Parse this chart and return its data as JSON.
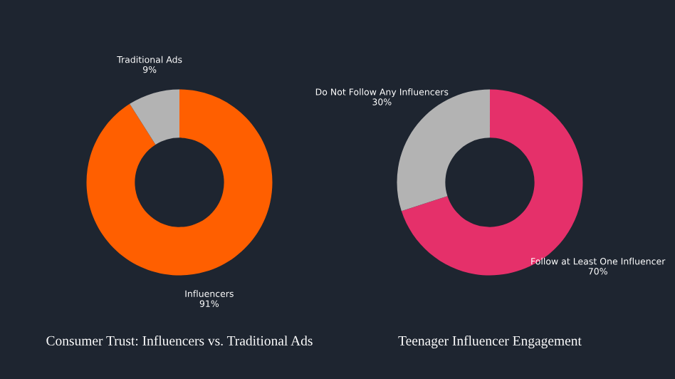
{
  "chart_data": [
    {
      "type": "donut",
      "title": "Consumer Trust: Influencers vs. Traditional Ads",
      "categories": [
        "Influencers",
        "Traditional Ads"
      ],
      "values": [
        91,
        9
      ],
      "colors": [
        "#ff5f00",
        "#b3b3b3"
      ],
      "value_labels": [
        "91%",
        "9%"
      ]
    },
    {
      "type": "donut",
      "title": "Teenager Influencer Engagement",
      "categories": [
        "Follow at Least One Influencer",
        "Do Not Follow Any Influencers"
      ],
      "values": [
        70,
        30
      ],
      "colors": [
        "#e5306a",
        "#b3b3b3"
      ],
      "value_labels": [
        "70%",
        "30%"
      ]
    }
  ]
}
